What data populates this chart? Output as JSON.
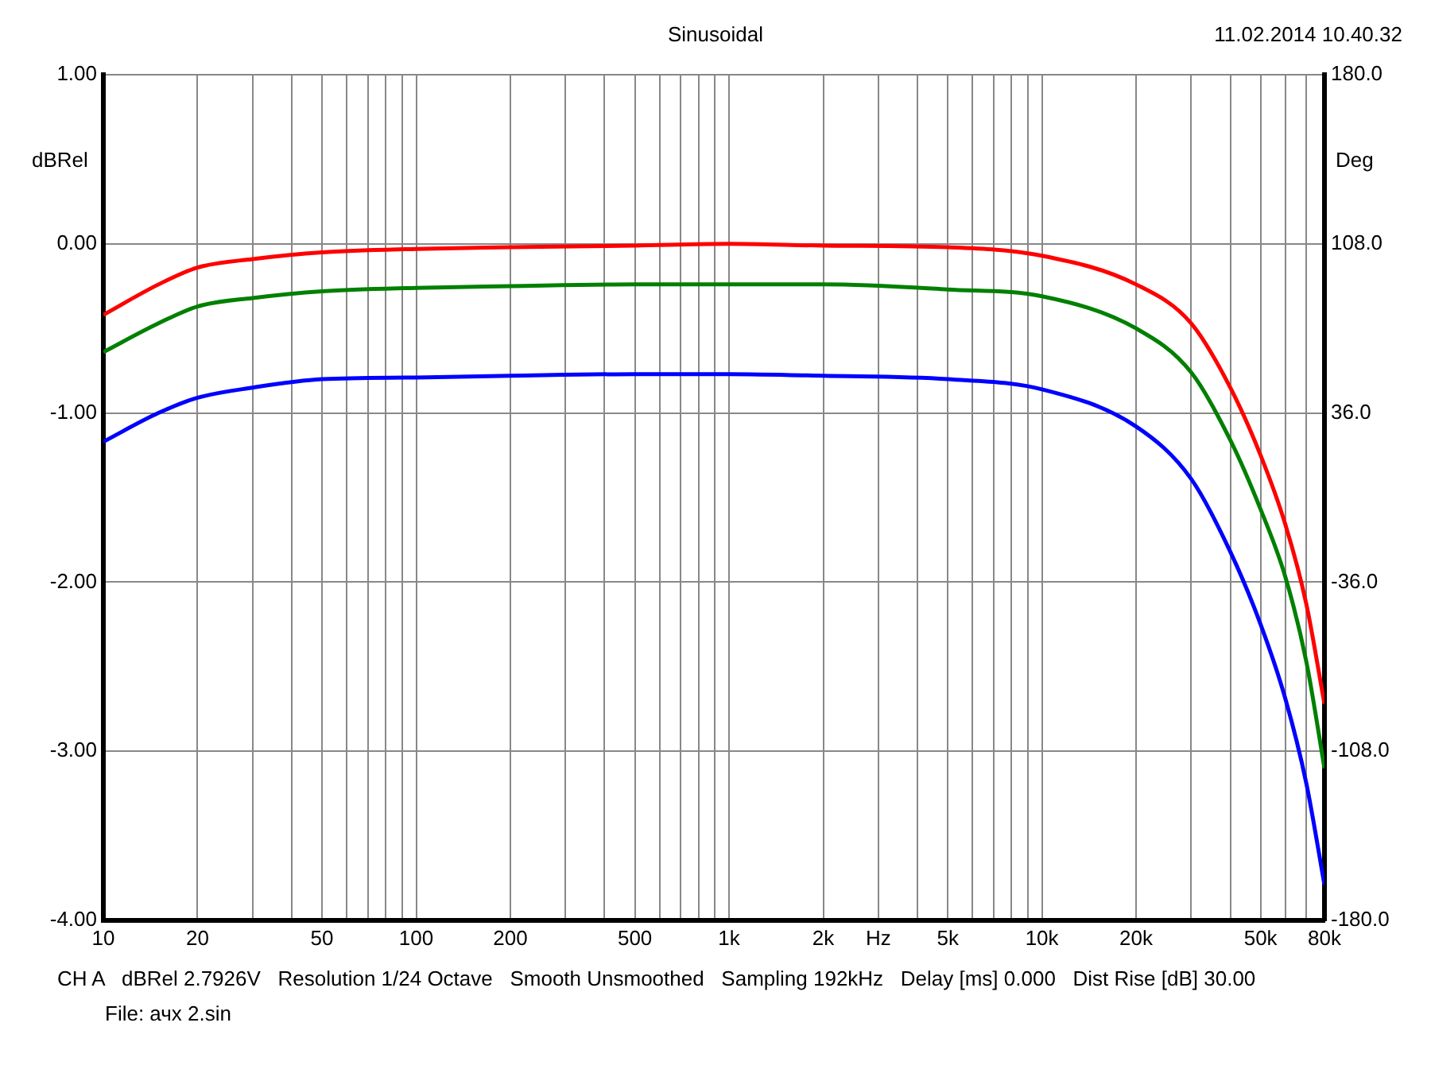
{
  "chart_data": {
    "type": "line",
    "title": "Sinusoidal",
    "ylabel": "dBRel",
    "y2label": "Deg",
    "annotations": [
      "11.02.2014 10.40.32",
      "CH A   dBRel 2.7926V   Resolution 1/24 Octave   Smooth Unsmoothed   Sampling 192kHz   Delay [ms] 0.000   Dist Rise [dB] 30.00",
      "File: ачх 2.sin"
    ],
    "x": [
      10,
      15,
      20,
      30,
      50,
      100,
      200,
      500,
      1000,
      2000,
      5000,
      10000,
      20000,
      30000,
      40000,
      50000,
      60000,
      70000,
      80000
    ],
    "series": [
      {
        "color": "#ff0000",
        "values": [
          -0.42,
          -0.24,
          -0.14,
          -0.09,
          -0.05,
          -0.03,
          -0.02,
          -0.01,
          0.0,
          -0.01,
          -0.02,
          -0.07,
          -0.24,
          -0.47,
          -0.85,
          -1.25,
          -1.66,
          -2.13,
          -2.72
        ]
      },
      {
        "color": "#008000",
        "values": [
          -0.64,
          -0.47,
          -0.37,
          -0.32,
          -0.28,
          -0.26,
          -0.25,
          -0.24,
          -0.24,
          -0.24,
          -0.27,
          -0.31,
          -0.5,
          -0.76,
          -1.16,
          -1.57,
          -1.97,
          -2.47,
          -3.1
        ]
      },
      {
        "color": "#0000ff",
        "values": [
          -1.17,
          -1.0,
          -0.91,
          -0.85,
          -0.8,
          -0.79,
          -0.78,
          -0.77,
          -0.77,
          -0.78,
          -0.8,
          -0.86,
          -1.08,
          -1.39,
          -1.82,
          -2.25,
          -2.69,
          -3.19,
          -3.79
        ]
      }
    ],
    "log": "x",
    "xlim": [
      10,
      80000
    ],
    "xticks": [
      10,
      {
        "value": 20,
        "label": "20"
      },
      {
        "value": 30,
        "label": null
      },
      {
        "value": 40,
        "label": null
      },
      {
        "value": 50,
        "label": "50"
      },
      {
        "value": 60,
        "label": null
      },
      {
        "value": 70,
        "label": null
      },
      {
        "value": 80,
        "label": null
      },
      {
        "value": 90,
        "label": null
      },
      {
        "value": 100,
        "label": "100"
      },
      {
        "value": 200,
        "label": "200"
      },
      {
        "value": 300,
        "label": null
      },
      {
        "value": 400,
        "label": null
      },
      {
        "value": 500,
        "label": "500"
      },
      {
        "value": 600,
        "label": null
      },
      {
        "value": 700,
        "label": null
      },
      {
        "value": 800,
        "label": null
      },
      {
        "value": 900,
        "label": null
      },
      {
        "value": 1000,
        "label": "1k"
      },
      {
        "value": 2000,
        "label": "2k"
      },
      {
        "value": 3000,
        "label": "Hz"
      },
      {
        "value": 4000,
        "label": null
      },
      {
        "value": 5000,
        "label": "5k"
      },
      {
        "value": 6000,
        "label": null
      },
      {
        "value": 7000,
        "label": null
      },
      {
        "value": 8000,
        "label": null
      },
      {
        "value": 9000,
        "label": null
      },
      {
        "value": 10000,
        "label": "10k"
      },
      {
        "value": 20000,
        "label": "20k"
      },
      {
        "value": 30000,
        "label": null
      },
      {
        "value": 40000,
        "label": null
      },
      {
        "value": 50000,
        "label": "50k"
      },
      {
        "value": 60000,
        "label": null
      },
      {
        "value": 70000,
        "label": null
      },
      {
        "value": 80000,
        "label": "80k"
      }
    ],
    "ylim": [
      -4,
      1
    ],
    "yticks": [
      {
        "value": 1,
        "label": "1.00"
      },
      {
        "value": 0,
        "label": "0.00"
      },
      {
        "value": -1,
        "label": "-1.00"
      },
      {
        "value": -2,
        "label": "-2.00"
      },
      {
        "value": -3,
        "label": "-3.00"
      },
      {
        "value": -4,
        "label": "-4.00"
      }
    ],
    "y2lim": [
      -180,
      180
    ],
    "y2ticks": [
      {
        "value": 180,
        "label": "180.0"
      },
      {
        "value": 108,
        "label": "108.0"
      },
      {
        "value": 36,
        "label": "36.0"
      },
      {
        "value": -36,
        "label": "-36.0"
      },
      {
        "value": -108,
        "label": "-108.0"
      },
      {
        "value": -180,
        "label": "-180.0"
      }
    ],
    "grid": true,
    "legend": false,
    "marker": "none",
    "line_style": "solid"
  }
}
